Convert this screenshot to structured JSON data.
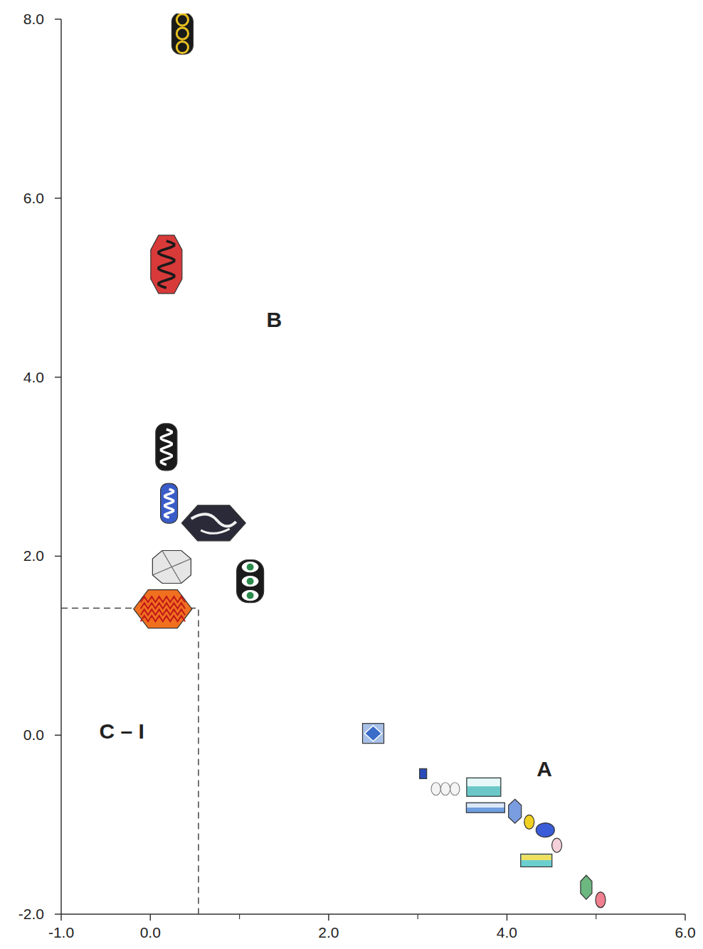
{
  "chart_data": {
    "type": "scatter",
    "x": [
      0.36,
      0.18,
      0.18,
      0.21,
      0.71,
      0.24,
      1.12,
      0.14,
      2.5,
      3.06,
      3.31,
      3.74,
      3.76,
      4.09,
      4.25,
      4.43,
      4.56,
      4.33,
      4.89,
      5.05
    ],
    "values": [
      7.84,
      5.26,
      3.22,
      2.59,
      2.37,
      1.88,
      1.72,
      1.41,
      0.02,
      -0.43,
      -0.6,
      -0.58,
      -0.81,
      -0.85,
      -0.97,
      -1.06,
      -1.23,
      -1.4,
      -1.7,
      -1.84
    ],
    "colors": [
      "#1a1a1a",
      "#d83a3a",
      "#1a1a1a",
      "#3a5cc8",
      "#2a2a38",
      "#e6e6e6",
      "#1a1a1a",
      "#f07020",
      "#a8c0e8",
      "#2a4cb8",
      "#f4f4f4",
      "#6cc8c8",
      "#6f9ee0",
      "#7a9ce0",
      "#f0d020",
      "#3a5cd8",
      "#f4d0d8",
      "#6ccfcf",
      "#6cb880",
      "#f08090"
    ],
    "xlim": [
      -1,
      6
    ],
    "ylim": [
      -2,
      8
    ],
    "xticks": [
      {
        "value": -1,
        "label": "-1.0"
      },
      {
        "value": 0,
        "label": "0.0"
      },
      {
        "value": 2,
        "label": "2.0"
      },
      {
        "value": 4,
        "label": "4.0"
      },
      {
        "value": 6,
        "label": "6.0"
      }
    ],
    "yticks": [
      {
        "value": -2,
        "label": "-2.0"
      },
      {
        "value": 0,
        "label": "0.0"
      },
      {
        "value": 2,
        "label": "2.0"
      },
      {
        "value": 4,
        "label": "4.0"
      },
      {
        "value": 6,
        "label": "6.0"
      },
      {
        "value": 8,
        "label": "8.0"
      }
    ],
    "annotations": [
      {
        "text": "A",
        "x": 4.42,
        "y": -0.37
      },
      {
        "text": "B",
        "x": 1.39,
        "y": 4.65
      },
      {
        "text": "C – I",
        "x": -0.32,
        "y": 0.05
      }
    ],
    "region": {
      "x": 0.54,
      "y": 1.42
    }
  }
}
